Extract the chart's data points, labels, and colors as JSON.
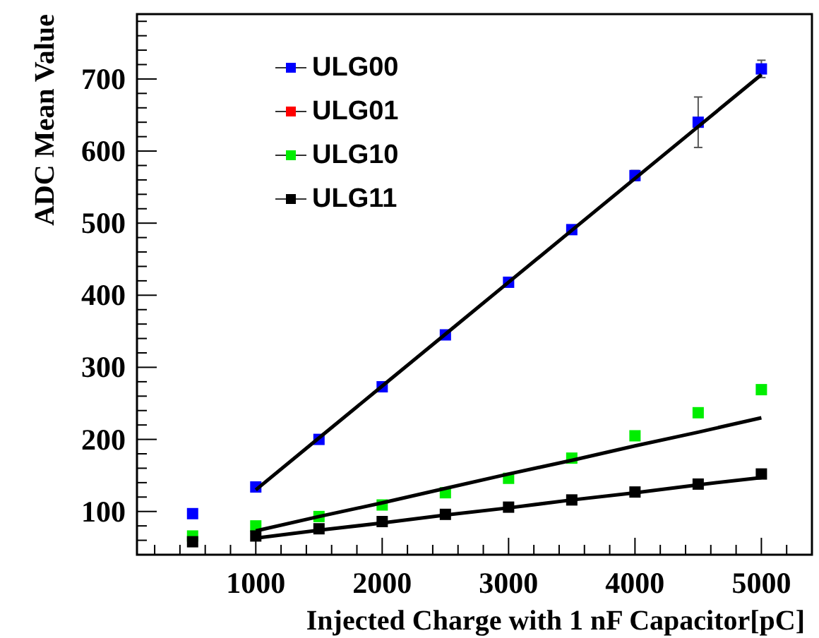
{
  "chart_data": {
    "type": "scatter",
    "xlabel": "Injected Charge with 1 nF Capacitor[pC]",
    "ylabel": "ADC Mean Value",
    "marker": "square",
    "legend": "top left",
    "grid": false,
    "xlim": [
      60,
      5400
    ],
    "ylim": [
      40,
      790
    ],
    "xticks": [
      {
        "value": 200,
        "label": null
      },
      {
        "value": 400,
        "label": null
      },
      {
        "value": 600,
        "label": null
      },
      {
        "value": 800,
        "label": null
      },
      1000,
      {
        "value": 1200,
        "label": null
      },
      {
        "value": 1400,
        "label": null
      },
      {
        "value": 1600,
        "label": null
      },
      {
        "value": 1800,
        "label": null
      },
      2000,
      {
        "value": 2200,
        "label": null
      },
      {
        "value": 2400,
        "label": null
      },
      {
        "value": 2600,
        "label": null
      },
      {
        "value": 2800,
        "label": null
      },
      3000,
      {
        "value": 3200,
        "label": null
      },
      {
        "value": 3400,
        "label": null
      },
      {
        "value": 3600,
        "label": null
      },
      {
        "value": 3800,
        "label": null
      },
      4000,
      {
        "value": 4200,
        "label": null
      },
      {
        "value": 4400,
        "label": null
      },
      {
        "value": 4600,
        "label": null
      },
      {
        "value": 4800,
        "label": null
      },
      5000,
      {
        "value": 5200,
        "label": null
      },
      {
        "value": 5400,
        "label": null
      }
    ],
    "yticks": [
      {
        "value": 40,
        "label": null
      },
      {
        "value": 60,
        "label": null
      },
      {
        "value": 80,
        "label": null
      },
      100,
      {
        "value": 120,
        "label": null
      },
      {
        "value": 140,
        "label": null
      },
      {
        "value": 160,
        "label": null
      },
      {
        "value": 180,
        "label": null
      },
      200,
      {
        "value": 220,
        "label": null
      },
      {
        "value": 240,
        "label": null
      },
      {
        "value": 260,
        "label": null
      },
      {
        "value": 280,
        "label": null
      },
      300,
      {
        "value": 320,
        "label": null
      },
      {
        "value": 340,
        "label": null
      },
      {
        "value": 360,
        "label": null
      },
      {
        "value": 380,
        "label": null
      },
      400,
      {
        "value": 420,
        "label": null
      },
      {
        "value": 440,
        "label": null
      },
      {
        "value": 460,
        "label": null
      },
      {
        "value": 480,
        "label": null
      },
      500,
      {
        "value": 520,
        "label": null
      },
      {
        "value": 540,
        "label": null
      },
      {
        "value": 560,
        "label": null
      },
      {
        "value": 580,
        "label": null
      },
      600,
      {
        "value": 620,
        "label": null
      },
      {
        "value": 640,
        "label": null
      },
      {
        "value": 660,
        "label": null
      },
      {
        "value": 680,
        "label": null
      },
      700,
      {
        "value": 720,
        "label": null
      },
      {
        "value": 740,
        "label": null
      },
      {
        "value": 760,
        "label": null
      },
      {
        "value": 780,
        "label": null
      }
    ],
    "x": [
      500,
      1000,
      1500,
      2000,
      2500,
      3000,
      3500,
      4000,
      4500,
      5000
    ],
    "series": [
      {
        "name": "ULG00",
        "color": "#0000ff",
        "values": [
          97,
          134,
          200,
          273,
          345,
          418,
          491,
          566,
          640,
          714
        ],
        "errors": [
          null,
          null,
          null,
          null,
          null,
          null,
          null,
          7,
          35,
          12
        ]
      },
      {
        "name": "ULG01",
        "color": "#ff0000",
        "values": [
          null,
          null,
          null,
          null,
          null,
          null,
          null,
          null,
          null,
          null
        ]
      },
      {
        "name": "ULG10",
        "color": "#00ee00",
        "values": [
          66,
          80,
          93,
          109,
          126,
          146,
          174,
          205,
          237,
          269
        ]
      },
      {
        "name": "ULG11",
        "color": "#000000",
        "values": [
          58,
          66,
          76,
          86,
          96,
          106,
          116,
          127,
          138,
          152
        ]
      },
      {
        "type": "line",
        "color": "#000000",
        "values": [
          null,
          130,
          202,
          274,
          346,
          418,
          490,
          562,
          634,
          706
        ],
        "marker": "none"
      },
      {
        "type": "line",
        "color": "#000000",
        "values": [
          null,
          73,
          93,
          112,
          132,
          152,
          171,
          191,
          210,
          230
        ],
        "marker": "none"
      },
      {
        "type": "line",
        "color": "#000000",
        "values": [
          null,
          63,
          74,
          84,
          95,
          105,
          116,
          126,
          137,
          147
        ],
        "marker": "none"
      }
    ]
  }
}
